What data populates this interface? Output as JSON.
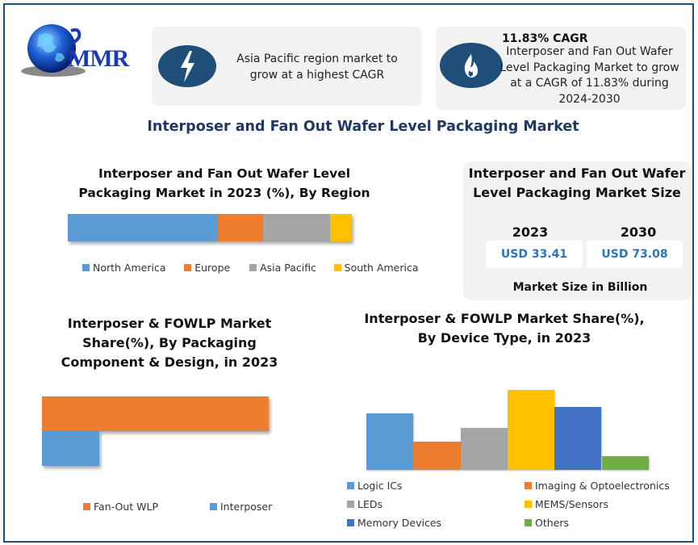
{
  "brand": {
    "logo_text": "MMR"
  },
  "info_cards": [
    {
      "icon": "lightning-bolt-icon",
      "text": "Asia Pacific region market to grow at a highest CAGR"
    },
    {
      "icon": "flame-icon",
      "heading": "11.83% CAGR",
      "text": "Interposer and Fan Out Wafer Level Packaging Market to grow at a CAGR of 11.83% during 2024-2030"
    }
  ],
  "page_title": "Interposer and Fan Out Wafer Level Packaging Market",
  "market_size": {
    "title": "Interposer and Fan Out Wafer Level Packaging Market Size",
    "years": [
      {
        "year": "2023",
        "value": "USD 33.41"
      },
      {
        "year": "2030",
        "value": "USD 73.08"
      }
    ],
    "footer": "Market Size in Billion"
  },
  "chart_data": [
    {
      "type": "bar",
      "orientation": "horizontal-stacked",
      "title": "Interposer and Fan Out Wafer Level Packaging Market in 2023 (%), By Region",
      "categories": [
        "North America",
        "Europe",
        "Asia Pacific",
        "South America"
      ],
      "values": [
        52.8,
        15.9,
        23.6,
        7.7
      ],
      "colors": [
        "#5b9bd5",
        "#ed7d31",
        "#a5a5a5",
        "#ffc000"
      ],
      "legend": "bottom",
      "grid": false
    },
    {
      "type": "bar",
      "orientation": "horizontal",
      "title": "Interposer & FOWLP Market Share(%), By Packaging Component & Design, in 2023",
      "categories": [
        "Fan-Out WLP",
        "Interposer"
      ],
      "values": [
        79.8,
        20.2
      ],
      "colors": [
        "#ed7d31",
        "#5b9bd5"
      ],
      "legend": "bottom",
      "grid": false
    },
    {
      "type": "bar",
      "orientation": "vertical",
      "title": "Interposer & FOWLP Market Share(%), By Device Type, in 2023",
      "categories": [
        "Logic ICs",
        "Imaging & Optoelectronics",
        "LEDs",
        "MEMS/Sensors",
        "Memory Devices",
        "Others"
      ],
      "values": [
        19.9,
        10.0,
        14.8,
        28.2,
        22.3,
        4.8
      ],
      "colors": [
        "#5b9bd5",
        "#ed7d31",
        "#a5a5a5",
        "#ffc000",
        "#4472c4",
        "#70ad47"
      ],
      "legend": "bottom",
      "grid": false
    }
  ]
}
